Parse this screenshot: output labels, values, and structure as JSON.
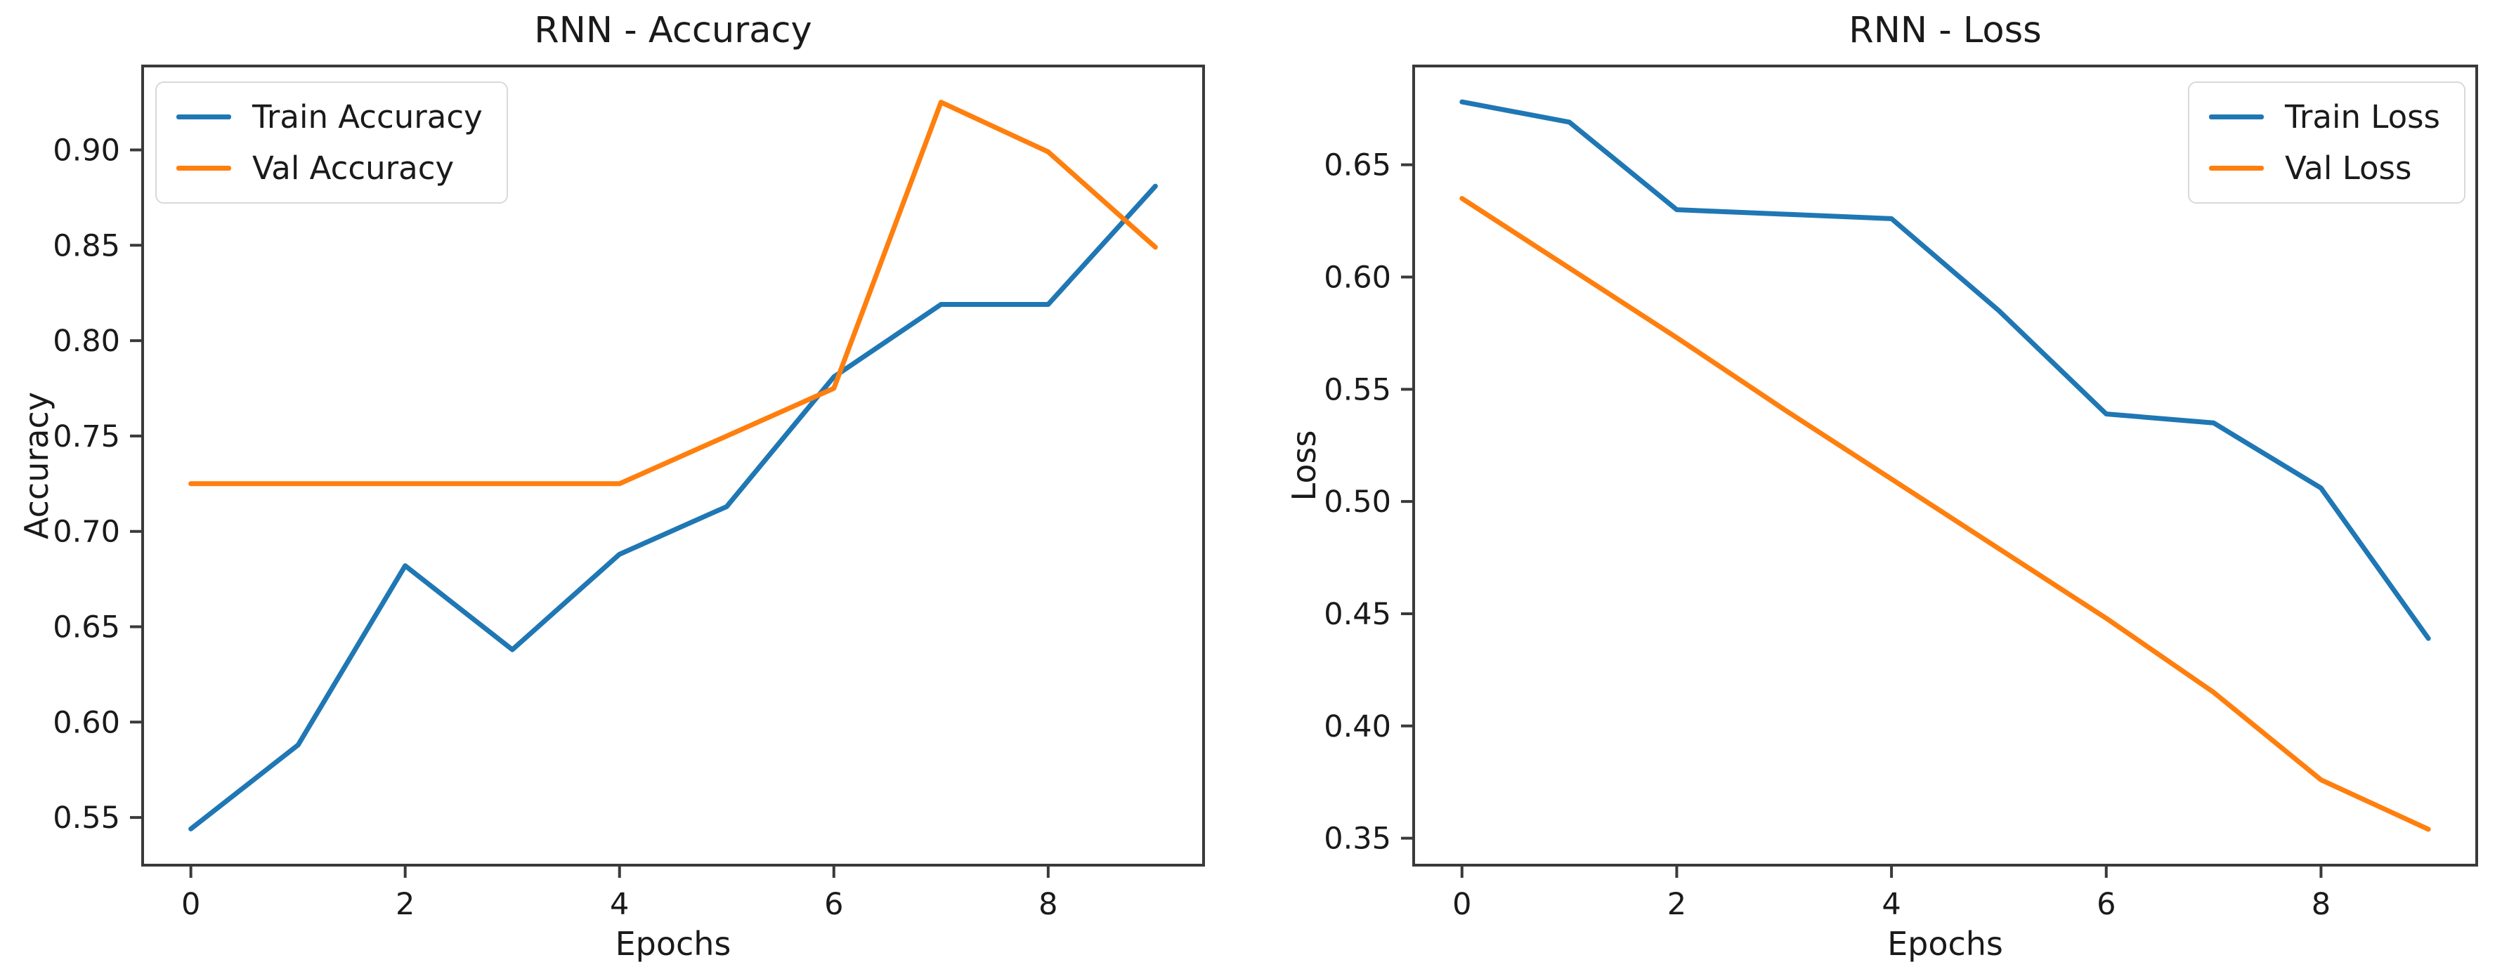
{
  "figure": {
    "background": "#ffffff",
    "text_color": "#1a1a1a",
    "spine_color": "#3a3a3a",
    "accent_blue": "#1f77b4",
    "accent_orange": "#ff7f0e"
  },
  "chart_data": [
    {
      "type": "line",
      "title": "RNN - Accuracy",
      "xlabel": "Epochs",
      "ylabel": "Accuracy",
      "x": [
        0,
        1,
        2,
        3,
        4,
        5,
        6,
        7,
        8,
        9
      ],
      "series": [
        {
          "name": "Train Accuracy",
          "color": "#1f77b4",
          "values": [
            0.544,
            0.588,
            0.682,
            0.638,
            0.688,
            0.713,
            0.781,
            0.819,
            0.819,
            0.881
          ]
        },
        {
          "name": "Val Accuracy",
          "color": "#ff7f0e",
          "values": [
            0.725,
            0.725,
            0.725,
            0.725,
            0.725,
            0.75,
            0.775,
            0.925,
            0.899,
            0.849
          ]
        }
      ],
      "xlim": [
        -0.45,
        9.45
      ],
      "ylim": [
        0.525,
        0.944
      ],
      "xticks": [
        0,
        2,
        4,
        6,
        8
      ],
      "yticks": [
        0.55,
        0.6,
        0.65,
        0.7,
        0.75,
        0.8,
        0.85,
        0.9
      ],
      "legend_position": "upper-left",
      "grid": false
    },
    {
      "type": "line",
      "title": "RNN - Loss",
      "xlabel": "Epochs",
      "ylabel": "Loss",
      "x": [
        0,
        1,
        2,
        3,
        4,
        5,
        6,
        7,
        8,
        9
      ],
      "series": [
        {
          "name": "Train Loss",
          "color": "#1f77b4",
          "values": [
            0.678,
            0.669,
            0.63,
            0.628,
            0.626,
            0.585,
            0.539,
            0.535,
            0.506,
            0.439
          ]
        },
        {
          "name": "Val Loss",
          "color": "#ff7f0e",
          "values": [
            0.635,
            0.604,
            0.573,
            0.541,
            0.51,
            0.479,
            0.448,
            0.415,
            0.376,
            0.354
          ]
        }
      ],
      "xlim": [
        -0.45,
        9.45
      ],
      "ylim": [
        0.338,
        0.694
      ],
      "xticks": [
        0,
        2,
        4,
        6,
        8
      ],
      "yticks": [
        0.35,
        0.4,
        0.45,
        0.5,
        0.55,
        0.6,
        0.65
      ],
      "legend_position": "upper-right",
      "grid": false
    }
  ]
}
